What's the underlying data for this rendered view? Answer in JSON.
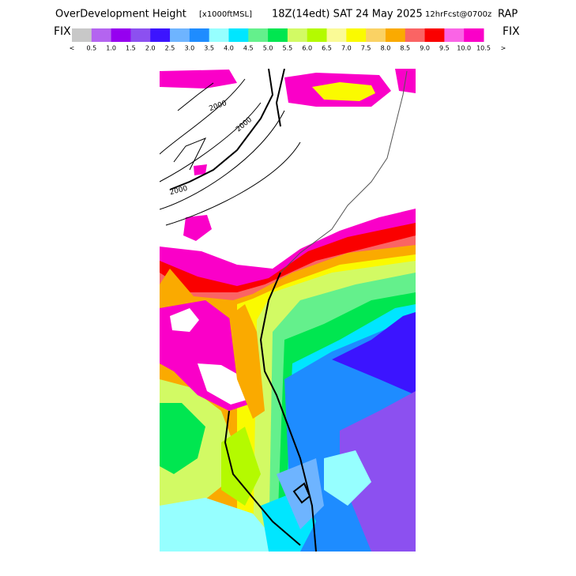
{
  "header": {
    "title_parts": [
      "OverDevelopment Height",
      "[x1000ftMSL]",
      "18Z(14edt) SAT 24 May 2025",
      "12hrFcst@0700z",
      "RAP"
    ]
  },
  "colorbar": {
    "fix_left": "FIX",
    "fix_right": "FIX",
    "colors": [
      "#c8c8c8",
      "#b464f0",
      "#9600f0",
      "#8c50f0",
      "#3c14ff",
      "#6eb4ff",
      "#1e8cff",
      "#96ffff",
      "#00e6ff",
      "#64f08c",
      "#00e650",
      "#d2fa64",
      "#b4fa00",
      "#fafa96",
      "#fafa00",
      "#fad264",
      "#faaa00",
      "#fa6464",
      "#fa0000",
      "#fa64e6",
      "#fa00c8"
    ],
    "labels": [
      "<",
      "0.5",
      "1.0",
      "1.5",
      "2.0",
      "2.5",
      "3.0",
      "3.5",
      "4.0",
      "4.5",
      "5.0",
      "5.5",
      "6.0",
      "6.5",
      "7.0",
      "7.5",
      "8.0",
      "8.5",
      "9.0",
      "9.5",
      "10.0",
      "10.5",
      ">"
    ]
  },
  "map": {
    "contour_labels": [
      "2000",
      "2000",
      "2000"
    ]
  }
}
